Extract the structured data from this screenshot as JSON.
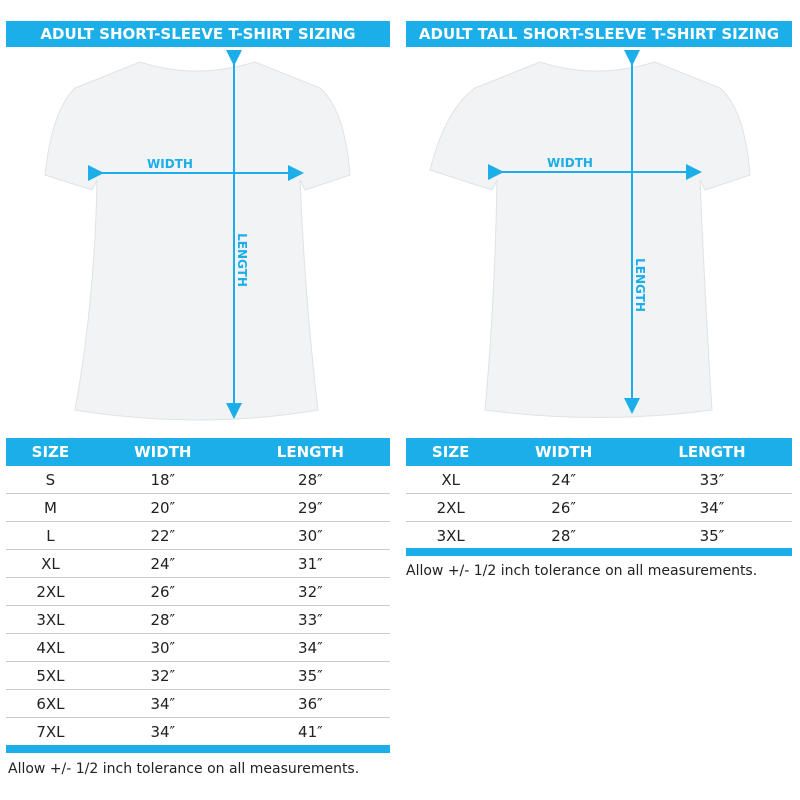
{
  "left": {
    "title": "ADULT SHORT-SLEEVE T-SHIRT SIZING",
    "width_label": "WIDTH",
    "length_label": "LENGTH",
    "headers": [
      "SIZE",
      "WIDTH",
      "LENGTH"
    ],
    "rows": [
      [
        "S",
        "18″",
        "28″"
      ],
      [
        "M",
        "20″",
        "29″"
      ],
      [
        "L",
        "22″",
        "30″"
      ],
      [
        "XL",
        "24″",
        "31″"
      ],
      [
        "2XL",
        "26″",
        "32″"
      ],
      [
        "3XL",
        "28″",
        "33″"
      ],
      [
        "4XL",
        "30″",
        "34″"
      ],
      [
        "5XL",
        "32″",
        "35″"
      ],
      [
        "6XL",
        "34″",
        "36″"
      ],
      [
        "7XL",
        "34″",
        "41″"
      ]
    ],
    "note": "Allow +/- 1/2 inch tolerance on all measurements."
  },
  "right": {
    "title": "ADULT TALL SHORT-SLEEVE T-SHIRT SIZING",
    "width_label": "WIDTH",
    "length_label": "LENGTH",
    "headers": [
      "SIZE",
      "WIDTH",
      "LENGTH"
    ],
    "rows": [
      [
        "XL",
        "24″",
        "33″"
      ],
      [
        "2XL",
        "26″",
        "34″"
      ],
      [
        "3XL",
        "28″",
        "35″"
      ]
    ],
    "note": "Allow +/- 1/2 inch tolerance on all measurements."
  },
  "colors": {
    "accent": "#1baee9"
  }
}
